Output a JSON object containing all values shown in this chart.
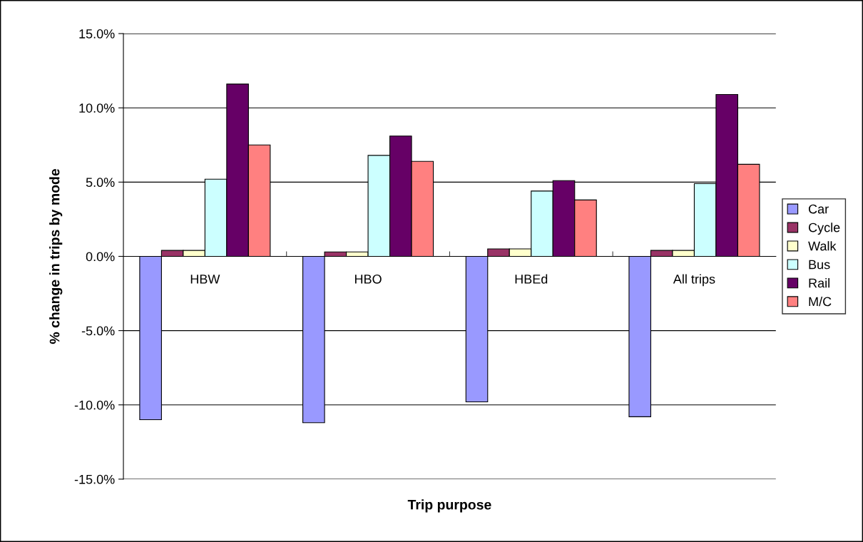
{
  "chart_data": {
    "type": "bar",
    "xlabel": "Trip purpose",
    "ylabel": "% change in trips by mode",
    "categories": [
      "HBW",
      "HBO",
      "HBEd",
      "All trips"
    ],
    "series": [
      {
        "name": "Car",
        "color": "#9999ff",
        "values": [
          -11.0,
          -11.2,
          -9.8,
          -10.8
        ]
      },
      {
        "name": "Cycle",
        "color": "#993366",
        "values": [
          0.4,
          0.3,
          0.5,
          0.4
        ]
      },
      {
        "name": "Walk",
        "color": "#ffffcc",
        "values": [
          0.4,
          0.3,
          0.5,
          0.4
        ]
      },
      {
        "name": "Bus",
        "color": "#ccffff",
        "values": [
          5.2,
          6.8,
          4.4,
          4.9
        ]
      },
      {
        "name": "Rail",
        "color": "#660066",
        "values": [
          11.6,
          8.1,
          5.1,
          10.9
        ]
      },
      {
        "name": "M/C",
        "color": "#ff8080",
        "values": [
          7.5,
          6.4,
          3.8,
          6.2
        ]
      }
    ],
    "ylim": [
      -15,
      15
    ],
    "yticks": [
      {
        "value": -15,
        "label": "-15.0%"
      },
      {
        "value": -10,
        "label": "-10.0%"
      },
      {
        "value": -5,
        "label": "-5.0%"
      },
      {
        "value": 0,
        "label": "0.0%"
      },
      {
        "value": 5,
        "label": "5.0%"
      },
      {
        "value": 10,
        "label": "10.0%"
      },
      {
        "value": 15,
        "label": "15.0%"
      }
    ],
    "grid": "y",
    "legend": "right"
  }
}
